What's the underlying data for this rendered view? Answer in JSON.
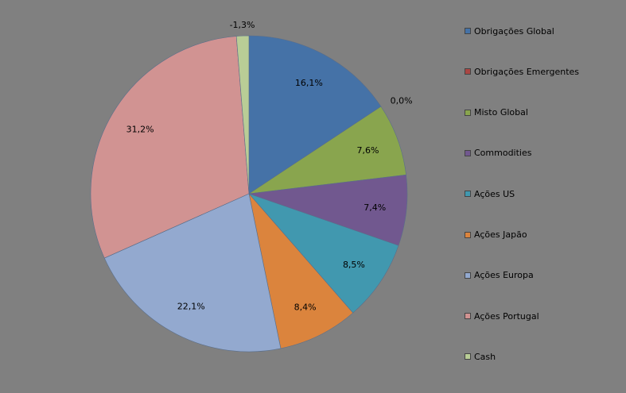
{
  "chart_data": {
    "type": "pie",
    "series": [
      {
        "name": "Obrigações Global",
        "value": 16.1,
        "label": "16,1%",
        "color": "#4572A7"
      },
      {
        "name": "Obrigações Emergentes",
        "value": 0.0,
        "label": "0,0%",
        "color": "#AA4643"
      },
      {
        "name": "Misto Global",
        "value": 7.6,
        "label": "7,6%",
        "color": "#89A54E"
      },
      {
        "name": "Commodities",
        "value": 7.4,
        "label": "7,4%",
        "color": "#71588F"
      },
      {
        "name": "Ações US",
        "value": 8.5,
        "label": "8,5%",
        "color": "#4198AF"
      },
      {
        "name": "Ações Japão",
        "value": 8.4,
        "label": "8,4%",
        "color": "#DB843D"
      },
      {
        "name": "Ações Europa",
        "value": 22.1,
        "label": "22,1%",
        "color": "#93A9CF"
      },
      {
        "name": "Ações Portugal",
        "value": 31.2,
        "label": "31,2%",
        "color": "#D19392"
      },
      {
        "name": "Cash",
        "value": -1.3,
        "label": "-1,3%",
        "color": "#B9CD96"
      }
    ],
    "legend_position": "right"
  }
}
